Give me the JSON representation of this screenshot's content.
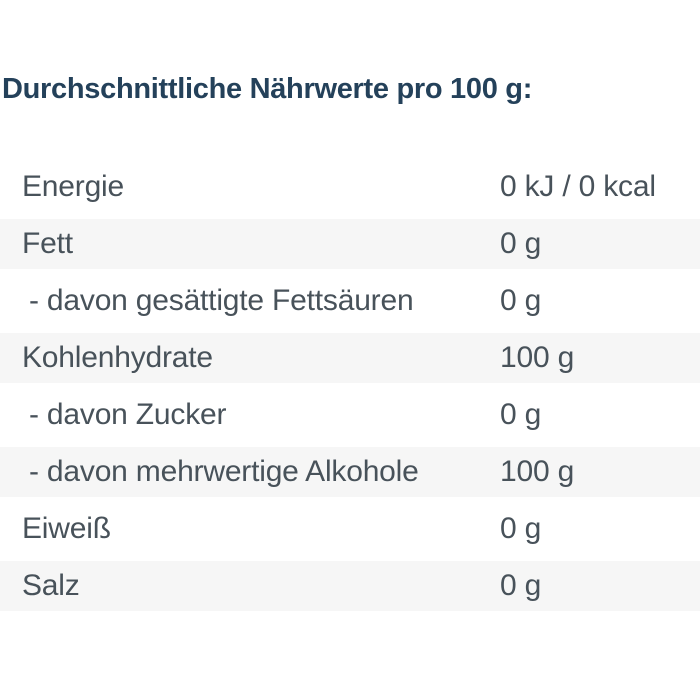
{
  "title": "Durchschnittliche Nährwerte pro 100 g:",
  "colors": {
    "background": "#ffffff",
    "title_text": "#24415a",
    "row_text": "#48525a",
    "stripe": "#f6f6f6"
  },
  "table": {
    "rows": [
      {
        "label": "Energie",
        "value": "0 kJ / 0 kcal",
        "indent": false,
        "striped": false
      },
      {
        "label": "Fett",
        "value": "0 g",
        "indent": false,
        "striped": true
      },
      {
        "label": "- davon gesättigte Fettsäuren",
        "value": "0 g",
        "indent": true,
        "striped": false
      },
      {
        "label": "Kohlenhydrate",
        "value": "100 g",
        "indent": false,
        "striped": true
      },
      {
        "label": "- davon Zucker",
        "value": "0 g",
        "indent": true,
        "striped": false
      },
      {
        "label": "- davon mehrwertige Alkohole",
        "value": "100 g",
        "indent": true,
        "striped": true
      },
      {
        "label": "Eiweiß",
        "value": "0 g",
        "indent": false,
        "striped": false
      },
      {
        "label": "Salz",
        "value": "0 g",
        "indent": false,
        "striped": true
      }
    ]
  }
}
